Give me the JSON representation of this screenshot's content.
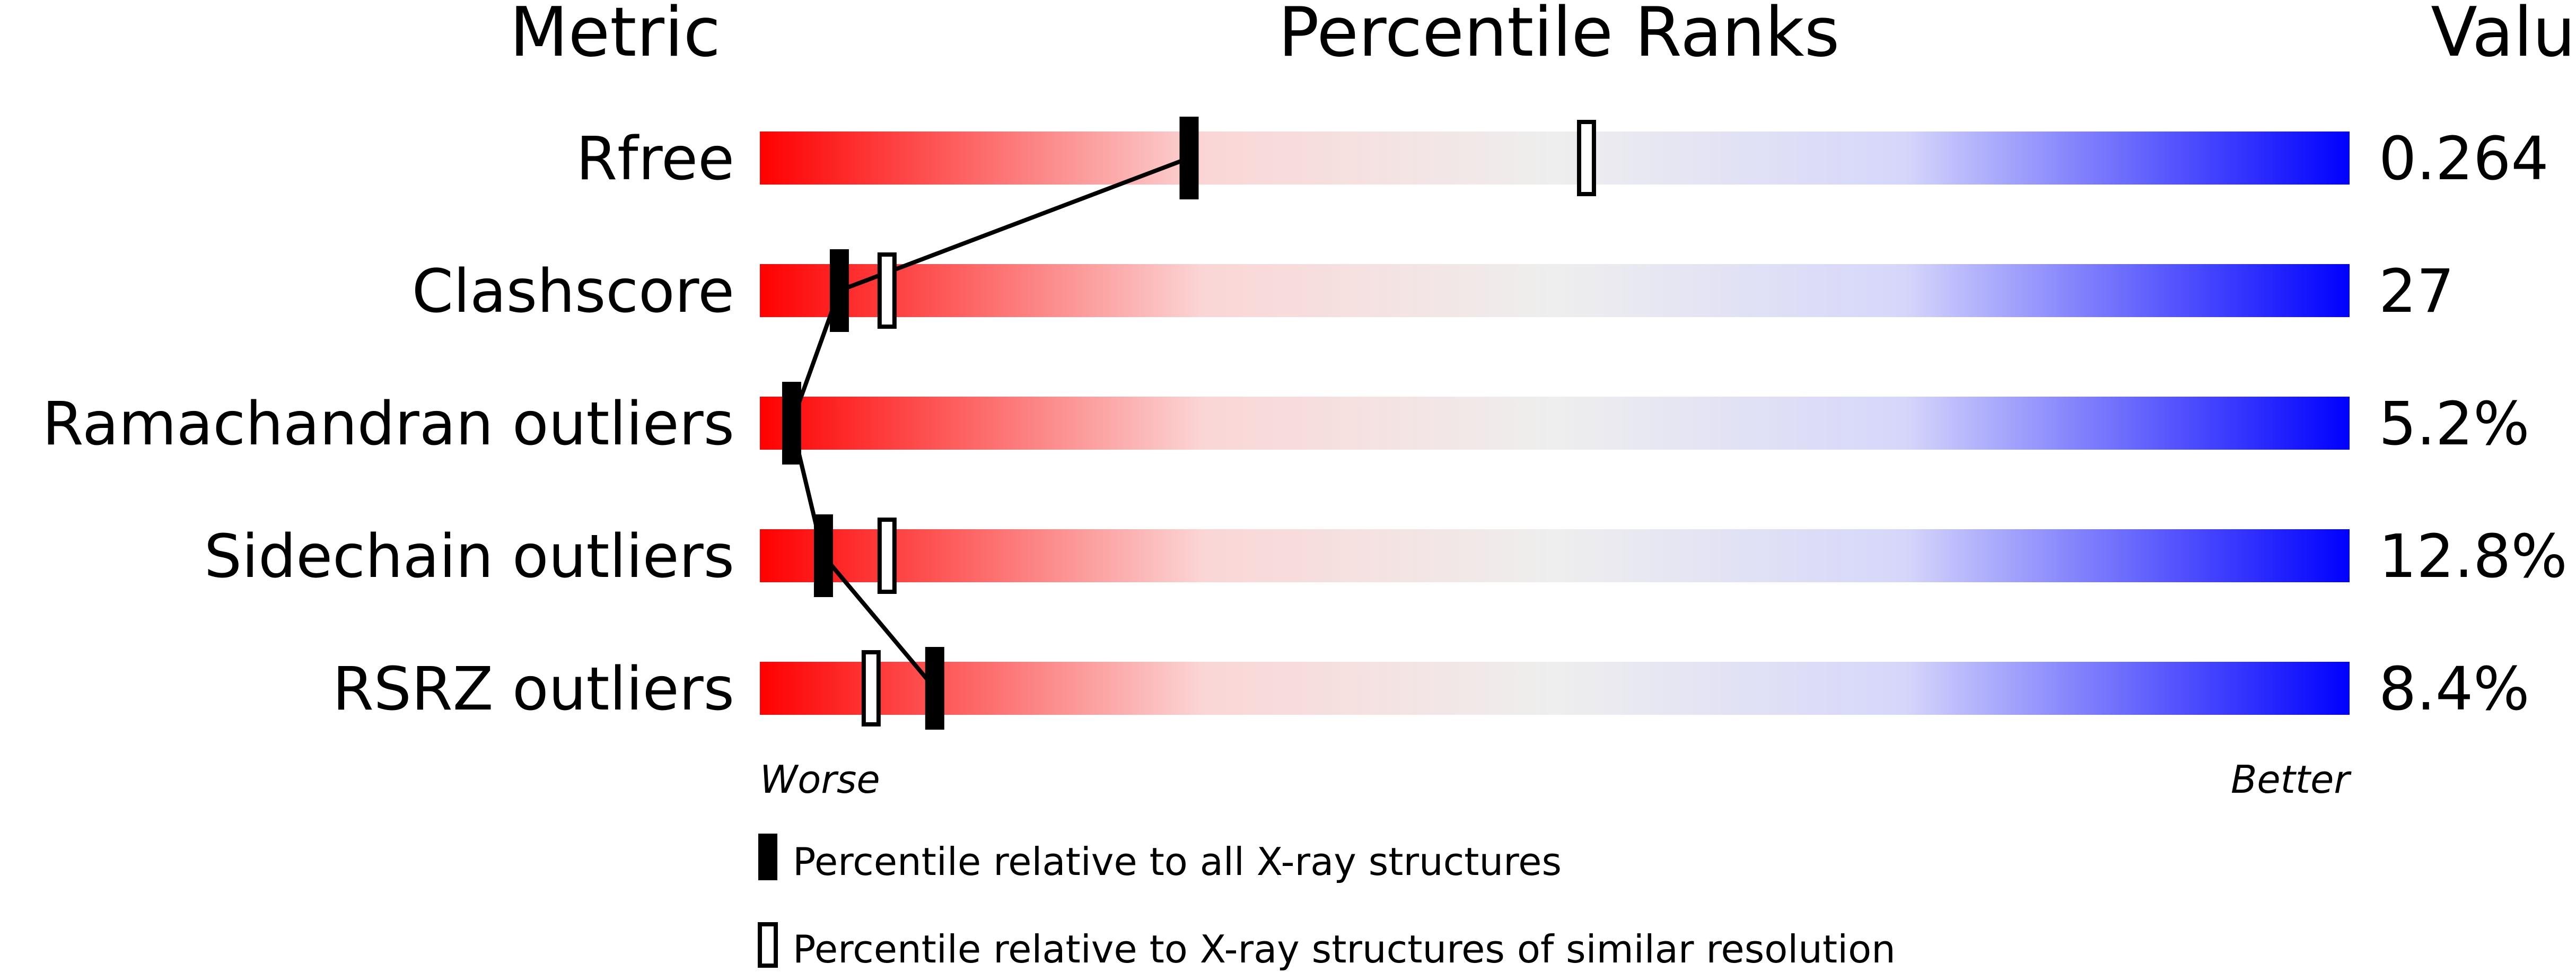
{
  "header": {
    "metric": "Metric",
    "ranks": "Percentile Ranks",
    "value": "Value"
  },
  "axis": {
    "worse": "Worse",
    "better": "Better"
  },
  "legend": {
    "all_label": "Percentile relative to all X-ray structures",
    "similar_label": "Percentile relative to X-ray structures of similar resolution"
  },
  "colors": {
    "worse": "#ff0000",
    "middle": "#eeeeee",
    "better": "#0000ff",
    "marker": "#000000"
  },
  "chart_data": {
    "type": "bar",
    "title": "Percentile Ranks",
    "xlim": [
      0,
      100
    ],
    "categories": [
      "Rfree",
      "Clashscore",
      "Ramachandran outliers",
      "Sidechain outliers",
      "RSRZ outliers"
    ],
    "values_text": [
      "0.264",
      "27",
      "5.2%",
      "12.8%",
      "8.4%"
    ],
    "series": [
      {
        "name": "Percentile relative to all X-ray structures",
        "style": "filled",
        "values": [
          27,
          5,
          2,
          4,
          11
        ]
      },
      {
        "name": "Percentile relative to X-ray structures of similar resolution",
        "style": "outline",
        "values": [
          52,
          8,
          null,
          8,
          7
        ]
      }
    ]
  }
}
